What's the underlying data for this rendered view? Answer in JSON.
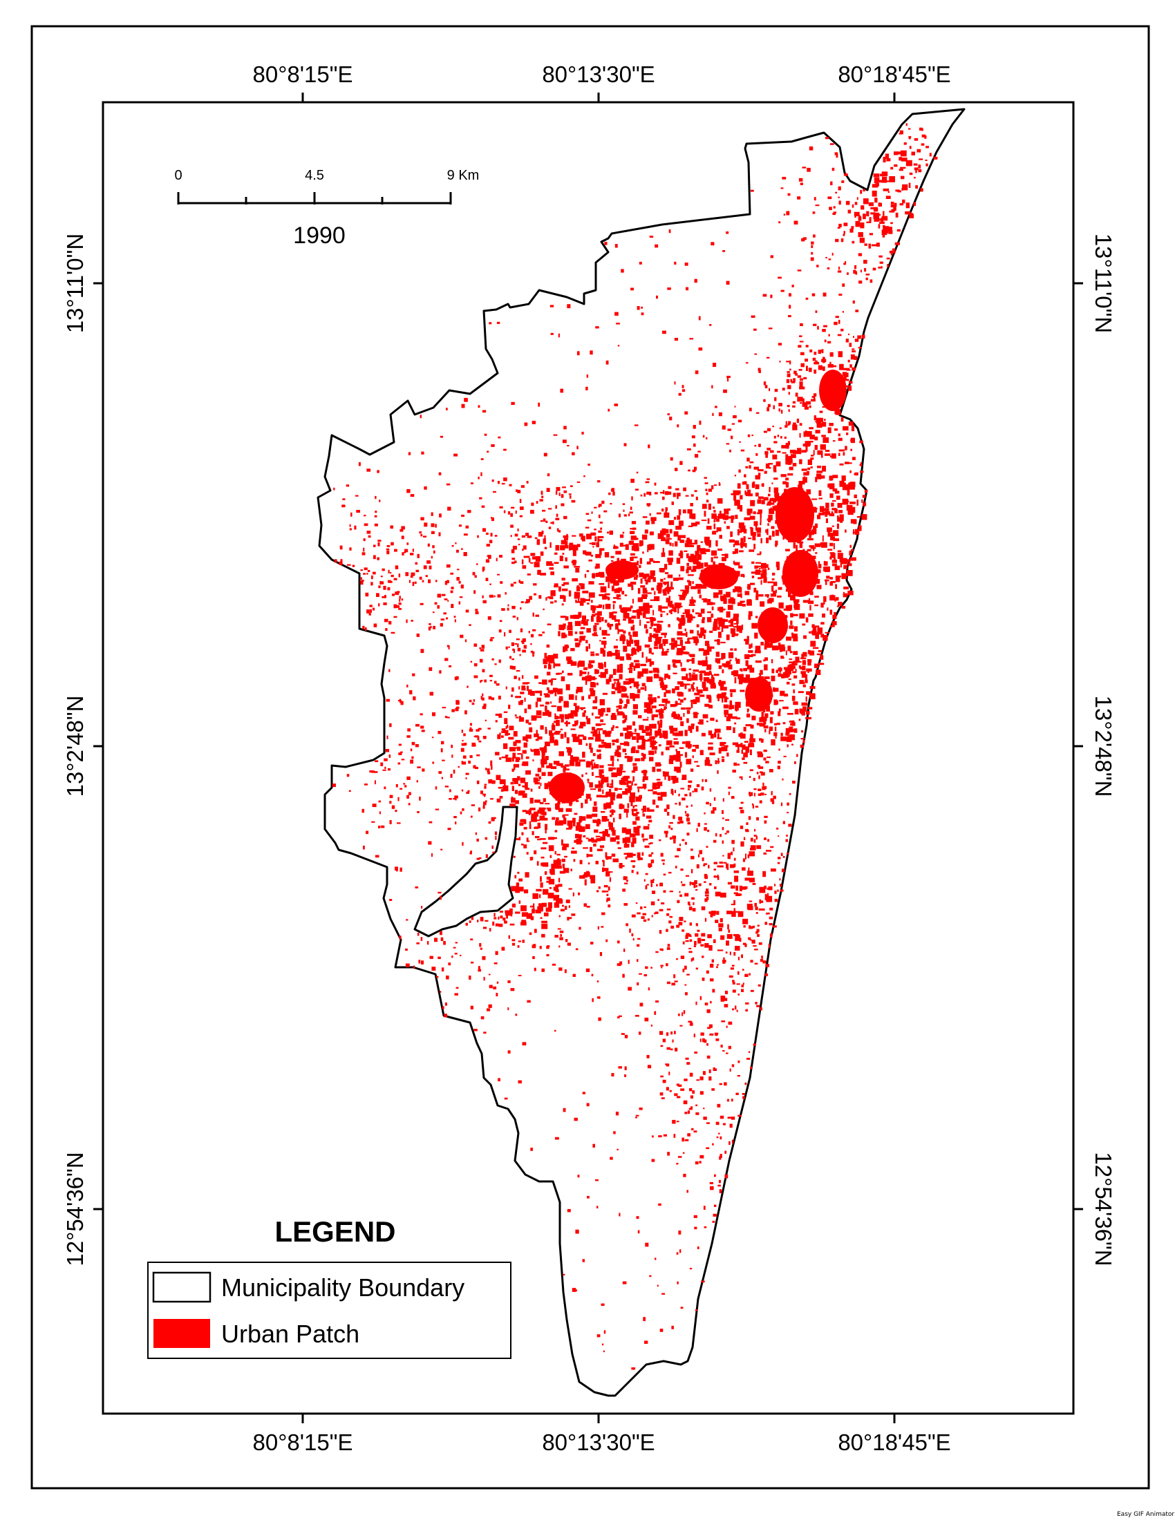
{
  "map": {
    "year_label": "1990",
    "urban_color": "#ff0000",
    "boundary_color": "#000000",
    "longitude_labels": [
      "80°8'15\"E",
      "80°13'30\"E",
      "80°18'45\"E"
    ],
    "latitude_labels": [
      "13°11'0\"N",
      "13°2'48\"N",
      "12°54'36\"N"
    ]
  },
  "scale_bar": {
    "labels": [
      "0",
      "4.5",
      "9 Km"
    ]
  },
  "legend": {
    "title": "LEGEND",
    "items": [
      {
        "label": "Municipality Boundary",
        "icon": "white-box-outline"
      },
      {
        "label": "Urban Patch",
        "icon": "red-box-filled"
      }
    ]
  },
  "credit": "Easy GIF Animator"
}
